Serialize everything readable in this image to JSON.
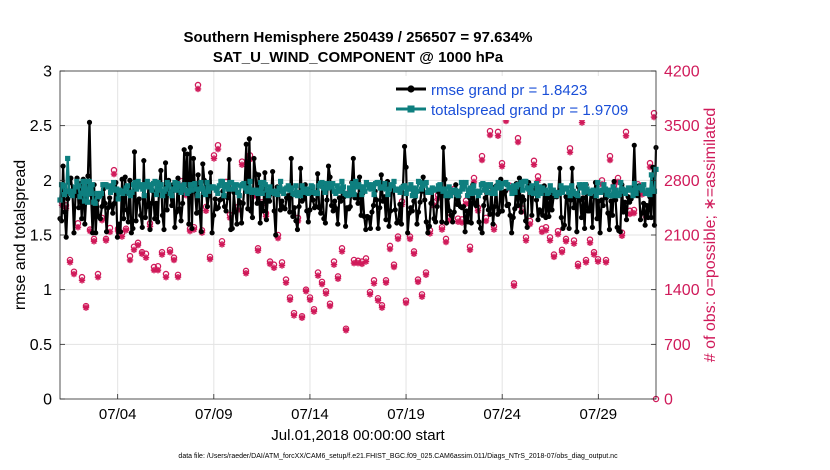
{
  "chart_data": {
    "type": "line",
    "title": "Southern Hemisphere 250439 / 256507 = 97.634%",
    "subtitle": "SAT_U_WIND_COMPONENT @ 1000 hPa",
    "ylabel": "rmse and totalspread",
    "y2label": "# of obs: o=possible; ∗=assimilated",
    "xlabel": "Jul.01,2018 00:00:00 start",
    "footer": "data file: /Users/raeder/DAI/ATM_forcXX/CAM6_setup/f.e21.FHIST_BGC.f09_025.CAM6assim.011/Diags_NTrS_2018-07/obs_diag_output.nc",
    "xlim": [
      1,
      32
    ],
    "ylim": [
      0,
      3
    ],
    "y2lim": [
      0,
      4200
    ],
    "y_ticks": [
      "0",
      "0.5",
      "1",
      "1.5",
      "2",
      "2.5",
      "3"
    ],
    "y2_ticks": [
      "0",
      "700",
      "1400",
      "2100",
      "2800",
      "3500",
      "4200"
    ],
    "x_ticks": [
      {
        "day": 4,
        "label": "07/04"
      },
      {
        "day": 9,
        "label": "07/09"
      },
      {
        "day": 14,
        "label": "07/14"
      },
      {
        "day": 19,
        "label": "07/19"
      },
      {
        "day": 24,
        "label": "07/24"
      },
      {
        "day": 29,
        "label": "07/29"
      }
    ],
    "colors": {
      "rmse": "#000000",
      "spread": "#0e7f7f",
      "obs": "#d01a5a",
      "grid": "#e3e3e3",
      "legend_text": "#1a4fd8"
    },
    "series": [
      {
        "name": "rmse grand pr = 1.8423",
        "values": [
          1.65,
          1.63,
          2.13,
          1.71,
          1.48,
          1.83,
          1.98,
          2.02,
          1.91,
          1.52,
          1.86,
          2.02,
          1.75,
          1.97,
          1.65,
          2.01,
          1.6,
          1.86,
          2.04,
          2.53,
          1.87,
          1.52,
          1.96,
          1.52,
          1.82,
          1.67,
          1.65,
          1.76,
          1.92,
          1.79,
          1.53,
          1.75,
          1.84,
          1.77,
          1.7,
          1.79,
          1.98,
          1.48,
          1.6,
          1.53,
          2.01,
          1.65,
          2.03,
          1.73,
          1.62,
          2.0,
          1.52,
          1.56,
          2.26,
          1.63,
          1.81,
          1.83,
          1.68,
          1.57,
          2.18,
          1.66,
          1.76,
          1.94,
          1.55,
          1.79,
          1.9,
          1.65,
          1.79,
          1.62,
          1.97,
          2.09,
          1.68,
          1.55,
          2.16,
          1.73,
          2.0,
          1.88,
          1.77,
          1.96,
          1.57,
          1.71,
          2.02,
          1.74,
          1.63,
          1.79,
          2.28,
          1.96,
          2.24,
          1.6,
          2.3,
          1.56,
          2.2,
          1.9,
          1.7,
          2.05,
          1.71,
          1.53,
          2.15,
          2.0,
          1.9,
          1.76,
          1.86,
          2.07,
          1.52,
          1.68,
          1.83,
          1.74,
          1.75,
          1.82,
          1.83,
          1.9,
          1.76,
          1.72,
          1.84,
          2.19,
          1.55,
          1.56,
          1.89,
          1.71,
          1.6,
          1.88,
          1.8,
          1.61,
          1.79,
          1.97,
          2.33,
          1.74,
          2.38,
          1.72,
          1.66,
          2.2,
          2.06,
          1.79,
          2.05,
          1.61,
          1.79,
          1.72,
          2.07,
          1.64,
          1.86,
          1.81,
          1.88,
          2.08,
          1.72,
          1.5,
          1.94,
          1.9,
          1.73,
          1.81,
          1.75,
          1.74,
          1.84,
          1.86,
          1.71,
          2.2,
          1.67,
          1.75,
          1.63,
          1.55,
          1.76,
          2.11,
          1.81,
          1.83,
          1.96,
          1.72,
          1.62,
          1.73,
          1.93,
          1.82,
          1.75,
          1.76,
          2.06,
          1.75,
          1.7,
          1.94,
          1.65,
          1.61,
          1.82,
          2.13,
          2.03,
          1.77,
          1.72,
          1.81,
          1.74,
          1.6,
          1.84,
          1.81,
          1.92,
          1.85,
          1.58,
          1.75,
          1.74,
          1.76,
          1.98,
          2.2,
          1.84,
          1.86,
          1.79,
          2.03,
          1.68,
          1.88,
          1.67,
          1.55,
          1.67,
          1.66,
          1.56,
          1.71,
          1.77,
          1.9,
          1.82,
          1.56,
          1.75,
          2.05,
          1.81,
          1.85,
          1.64,
          1.99,
          1.58,
          1.72,
          1.95,
          1.91,
          1.73,
          1.61,
          1.63,
          1.78,
          1.6,
          1.95,
          2.31,
          2.12,
          1.52,
          1.7,
          1.75,
          1.72,
          1.81,
          1.85,
          1.6,
          1.71,
          1.8,
          1.9,
          2.03,
          1.82,
          1.62,
          1.52,
          1.58,
          1.79,
          1.93,
          1.65,
          1.62,
          1.76,
          1.89,
          1.89,
          1.62,
          2.3,
          2.01,
          1.61,
          1.84,
          1.72,
          1.68,
          1.62,
          1.71,
          1.96,
          1.78,
          1.85,
          1.76,
          1.75,
          1.76,
          1.53,
          1.72,
          1.62,
          1.84,
          1.61,
          1.96,
          1.79,
          1.77,
          1.9,
          1.62,
          1.56,
          1.52,
          1.77,
          1.84,
          1.88,
          1.73,
          1.69,
          1.94,
          1.6,
          1.76,
          1.95,
          1.69,
          1.71,
          2.01,
          1.72,
          1.89,
          1.9,
          1.77,
          1.78,
          1.68,
          1.52,
          1.66,
          1.74,
          1.97,
          1.77,
          2.02,
          1.71,
          1.85,
          1.82,
          1.63,
          1.57,
          1.98,
          1.95,
          1.68,
          1.93,
          1.92,
          1.82,
          1.64,
          1.73,
          1.71,
          1.68,
          1.95,
          1.66,
          1.84,
          1.67,
          1.87,
          1.73,
          1.85,
          1.89,
          1.85,
          1.89,
          2.11,
          1.66,
          1.56,
          1.59,
          1.85,
          1.84,
          1.56,
          1.82,
          2.11,
          1.75,
          1.85,
          1.53,
          1.94,
          1.82,
          1.66,
          1.84,
          1.56,
          1.96,
          1.72,
          1.72,
          1.9,
          1.57,
          1.85,
          1.98,
          1.65,
          1.81,
          1.52,
          1.82,
          1.77,
          1.92,
          1.84,
          1.7,
          1.55,
          1.81,
          1.68,
          1.99,
          1.82,
          1.57,
          1.54,
          1.53,
          1.96,
          1.71,
          1.8,
          1.64,
          1.85,
          1.8,
          1.83,
          1.9,
          2.32,
          1.9,
          1.86,
          1.95,
          1.64,
          1.7,
          1.79,
          1.59,
          1.77,
          1.66,
          1.85,
          1.66,
          2.12,
          1.59,
          2.3
        ]
      },
      {
        "name": "totalspread grand pr = 1.9709",
        "values": [
          1.82,
          1.96,
          1.95,
          1.87,
          1.9,
          2.2,
          1.9,
          1.88,
          1.86,
          1.9,
          1.94,
          1.99,
          1.95,
          1.85,
          1.88,
          1.99,
          1.81,
          1.99,
          1.8,
          1.99,
          1.88,
          1.96,
          1.8,
          1.79,
          1.88,
          1.85,
          1.86,
          1.88,
          1.96,
          1.96,
          1.96,
          1.94,
          1.95,
          1.89,
          1.94,
          1.98,
          1.91,
          1.92,
          1.83,
          1.91,
          1.89,
          1.88,
          1.9,
          1.93,
          1.95,
          1.88,
          1.86,
          1.89,
          1.96,
          1.98,
          1.92,
          1.99,
          1.94,
          1.96,
          1.92,
          1.86,
          1.96,
          1.99,
          1.94,
          1.96,
          1.91,
          1.97,
          1.99,
          1.87,
          1.98,
          1.91,
          1.96,
          1.86,
          1.9,
          1.92,
          1.98,
          1.96,
          1.88,
          1.86,
          1.92,
          1.98,
          1.91,
          1.97,
          1.95,
          1.89,
          1.93,
          1.96,
          1.91,
          1.88,
          1.9,
          1.96,
          1.91,
          1.96,
          1.97,
          1.92,
          1.86,
          1.92,
          1.98,
          1.93,
          1.89,
          1.87,
          1.98,
          1.9,
          1.93,
          1.94,
          1.94,
          1.93,
          1.91,
          1.88,
          1.95,
          1.99,
          1.99,
          1.86,
          1.96,
          1.96,
          1.92,
          1.98,
          1.98,
          1.92,
          1.95,
          1.96,
          1.89,
          1.86,
          1.95,
          1.96,
          1.97,
          1.93,
          1.9,
          1.91,
          1.99,
          1.89,
          1.91,
          1.89,
          1.91,
          1.88,
          1.89,
          1.98,
          1.88,
          1.98,
          1.96,
          1.91,
          1.86,
          1.94,
          1.89,
          1.9,
          1.88,
          1.9,
          1.87,
          1.93,
          1.99,
          1.9,
          1.88,
          1.92,
          1.93,
          1.95,
          1.91,
          1.93,
          1.88,
          1.87,
          1.95,
          1.86,
          1.89,
          1.86,
          1.95,
          1.9,
          1.89,
          1.92,
          1.88,
          1.89,
          1.95,
          1.94,
          1.89,
          1.88,
          1.88,
          1.95,
          1.97,
          1.98,
          1.93,
          1.89,
          1.97,
          1.93,
          1.97,
          1.94,
          1.97,
          1.9,
          1.88,
          1.95,
          1.92,
          1.9,
          1.99,
          1.94,
          1.88,
          1.87,
          1.86,
          1.93,
          1.87,
          1.97,
          1.87,
          1.99,
          1.94,
          1.96,
          1.94,
          1.87,
          1.94,
          1.9,
          1.98,
          1.96,
          1.93,
          1.92,
          1.96,
          1.87,
          1.97,
          1.98,
          1.98,
          1.93,
          1.93,
          1.94,
          1.97,
          1.92,
          1.87,
          1.92,
          1.96,
          1.95,
          1.99,
          1.91,
          1.92,
          1.91,
          1.89,
          1.93,
          1.94,
          1.95,
          1.88,
          1.93,
          1.92,
          1.96,
          1.86,
          1.93,
          1.86,
          1.9,
          1.99,
          1.98,
          1.92,
          1.95,
          1.97,
          1.98,
          1.89,
          1.91,
          1.89,
          1.93,
          1.91,
          1.92,
          1.92,
          1.95,
          1.96,
          1.92,
          1.9,
          1.92,
          1.86,
          1.88,
          1.94,
          1.86,
          1.89,
          1.91,
          1.91,
          1.87,
          1.86,
          1.9,
          1.98,
          1.92,
          1.95,
          1.98,
          1.86,
          1.91,
          1.93,
          1.88,
          1.95,
          1.89,
          1.9,
          1.86,
          1.89,
          1.96,
          1.97,
          1.91,
          1.96,
          1.89,
          1.95,
          1.96,
          1.88,
          1.92,
          1.88,
          1.94,
          1.98,
          1.93,
          1.94,
          1.97,
          1.97,
          1.98,
          1.96,
          1.93,
          1.94,
          1.88,
          1.95,
          1.89,
          1.94,
          1.96,
          1.96,
          1.98,
          1.91,
          1.99,
          1.99,
          1.93,
          1.92,
          1.89,
          1.95,
          1.88,
          1.88,
          1.97,
          1.86,
          1.94,
          1.88,
          1.93,
          1.91,
          1.91,
          1.88,
          1.89,
          1.95,
          1.91,
          1.91,
          1.88,
          1.86,
          1.89,
          1.88,
          1.95,
          1.89,
          1.93,
          1.92,
          1.93,
          1.89,
          1.86,
          1.95,
          1.9,
          1.88,
          1.87,
          1.86,
          1.96,
          1.93,
          1.96,
          1.89,
          1.96,
          1.92,
          1.9,
          1.88,
          1.9,
          1.91,
          1.9,
          1.86,
          1.98,
          1.89,
          1.89,
          1.91,
          1.96,
          1.92,
          1.87,
          1.91,
          1.86,
          1.86,
          1.94,
          1.86,
          1.91,
          1.86,
          1.87,
          1.98,
          1.92,
          1.9,
          1.88,
          1.91,
          1.93,
          1.93,
          1.91,
          1.86,
          1.97,
          1.88,
          1.93,
          1.93,
          1.94,
          1.91,
          1.96,
          1.88,
          1.88,
          1.91,
          1.87,
          2.05,
          1.9,
          1.9,
          2.1
        ]
      }
    ],
    "obs_possible": [
      2520,
      2480,
      1780,
      1630,
      2250,
      1560,
      1190,
      2170,
      2050,
      1600,
      2320,
      2050,
      2190,
      2930,
      2180,
      2120,
      2180,
      1830,
      1950,
      2000,
      1880,
      1860,
      2250,
      1690,
      1700,
      1880,
      1600,
      1910,
      1810,
      1590,
      2790,
      2660,
      2180,
      2200,
      4020,
      2160,
      2460,
      1820,
      3120,
      3250,
      2020,
      2780,
      2360,
      2700,
      2460,
      3040,
      1640,
      3120,
      2640,
      1930,
      2520,
      2380,
      1760,
      1720,
      2100,
      1750,
      1530,
      1300,
      1100,
      2320,
      1060,
      1400,
      1300,
      1150,
      1620,
      1500,
      1380,
      1220,
      1760,
      1570,
      1930,
      900,
      2660,
      1780,
      1770,
      1760,
      1800,
      1370,
      1520,
      1290,
      1200,
      1520,
      1960,
      1720,
      2080,
      2530,
      1260,
      2080,
      1890,
      1530,
      1340,
      1620,
      2160,
      2520,
      2610,
      2200,
      2050,
      2330,
      2690,
      2310,
      2300,
      2540,
      1950,
      2830,
      2450,
      3110,
      2320,
      3430,
      2210,
      3420,
      3020,
      3610,
      2730,
      1480,
      3340,
      2440,
      2070,
      2280,
      3050,
      2850,
      2180,
      2200,
      2070,
      1850,
      2150,
      1910,
      2050,
      3210,
      2030,
      1730,
      3590,
      1780,
      2040,
      1880,
      1790,
      2800,
      1780,
      3110,
      2730,
      2830,
      2130,
      3420,
      2410,
      2420,
      2750,
      2670,
      2370,
      3020,
      3660
    ],
    "obs_assimilated": [
      2480,
      2440,
      1750,
      1600,
      2200,
      1520,
      1170,
      2150,
      2020,
      1560,
      2290,
      2030,
      2140,
      2880,
      2150,
      2080,
      2160,
      1780,
      1910,
      1970,
      1860,
      1810,
      2210,
      1650,
      1650,
      1850,
      1560,
      1880,
      1780,
      1560,
      2740,
      2610,
      2150,
      2170,
      3970,
      2130,
      2410,
      1790,
      3080,
      3200,
      1980,
      2730,
      2320,
      2670,
      2420,
      3000,
      1610,
      3070,
      2600,
      1900,
      2480,
      2340,
      1730,
      1680,
      2060,
      1710,
      1490,
      1270,
      1070,
      2280,
      1040,
      1380,
      1270,
      1120,
      1580,
      1470,
      1350,
      1190,
      1720,
      1540,
      1890,
      880,
      2610,
      1740,
      1740,
      1730,
      1760,
      1340,
      1480,
      1260,
      1170,
      1490,
      1920,
      1690,
      2050,
      2490,
      1230,
      2050,
      1860,
      1500,
      1310,
      1590,
      2120,
      2480,
      2570,
      2170,
      2010,
      2290,
      2650,
      2270,
      2260,
      2500,
      1910,
      2780,
      2410,
      3060,
      2280,
      3380,
      2170,
      3370,
      2980,
      3560,
      2690,
      1450,
      3290,
      2400,
      2030,
      2240,
      3000,
      2800,
      2140,
      2160,
      2030,
      1820,
      2110,
      1880,
      2020,
      3160,
      1990,
      1700,
      3540,
      1750,
      2000,
      1850,
      1760,
      2750,
      1750,
      3060,
      2690,
      2780,
      2090,
      3370,
      2370,
      2380,
      2700,
      2620,
      2330,
      2970,
      3610
    ]
  }
}
